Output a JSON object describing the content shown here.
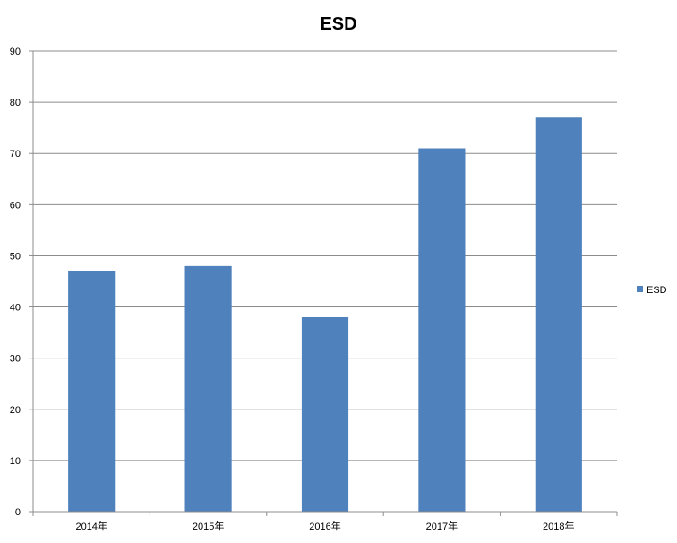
{
  "chart_data": {
    "type": "bar",
    "title": "ESD",
    "xlabel": "",
    "ylabel": "",
    "categories": [
      "2014年",
      "2015年",
      "2016年",
      "2017年",
      "2018年"
    ],
    "series": [
      {
        "name": "ESD",
        "values": [
          47,
          48,
          38,
          71,
          77
        ],
        "color": "#4f81bd"
      }
    ],
    "ylim": [
      0,
      90
    ],
    "yticks": [
      "0",
      "10",
      "20",
      "30",
      "40",
      "50",
      "60",
      "70",
      "80",
      "90"
    ],
    "grid": true,
    "legend_position": "right"
  }
}
